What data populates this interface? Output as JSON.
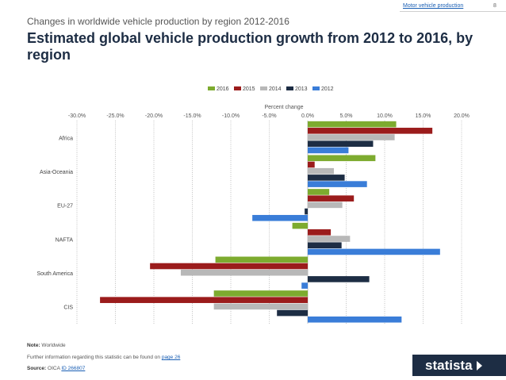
{
  "header": {
    "link_text": "Motor vehicle production",
    "page_number": "8"
  },
  "subtitle": "Changes in worldwide vehicle production by region 2012-2016",
  "title": "Estimated global vehicle production growth from 2012 to 2016, by region",
  "footer": {
    "note_label": "Note:",
    "note_text": "Worldwide",
    "info_text": "Further information regarding this statistic can be found on",
    "info_link": "page 26",
    "source_label": "Source:",
    "source_text": "OICA",
    "source_id": "ID 266807",
    "logo_text": "statista"
  },
  "chart_data": {
    "type": "bar",
    "orientation": "horizontal",
    "xlabel": "Percent change",
    "xlim": [
      -30,
      20
    ],
    "x_ticks": [
      "-30.0%",
      "-25.0%",
      "-20.0%",
      "-15.0%",
      "-10.0%",
      "-5.0%",
      "0.0%",
      "5.0%",
      "10.0%",
      "15.0%",
      "20.0%"
    ],
    "x_tick_values": [
      -30,
      -25,
      -20,
      -15,
      -10,
      -5,
      0,
      5,
      10,
      15,
      20
    ],
    "legend_position": "top",
    "categories": [
      "Africa",
      "Asia-Oceania",
      "EU-27",
      "NAFTA",
      "South America",
      "CIS"
    ],
    "series": [
      {
        "name": "2016",
        "color": "#7dab2f",
        "values": [
          11.5,
          8.8,
          2.8,
          -2.0,
          -12.0,
          -12.2
        ]
      },
      {
        "name": "2015",
        "color": "#9b1c1c",
        "values": [
          16.2,
          0.9,
          6.0,
          3.0,
          -20.5,
          -27.0
        ]
      },
      {
        "name": "2014",
        "color": "#b8b8b8",
        "values": [
          11.3,
          3.4,
          4.5,
          5.5,
          -16.5,
          -12.2
        ]
      },
      {
        "name": "2013",
        "color": "#1d2d44",
        "values": [
          8.5,
          4.8,
          -0.4,
          4.4,
          8.0,
          -4.0
        ]
      },
      {
        "name": "2012",
        "color": "#3a7dd8",
        "values": [
          5.3,
          7.7,
          -7.2,
          17.2,
          -0.8,
          12.2
        ]
      }
    ]
  }
}
